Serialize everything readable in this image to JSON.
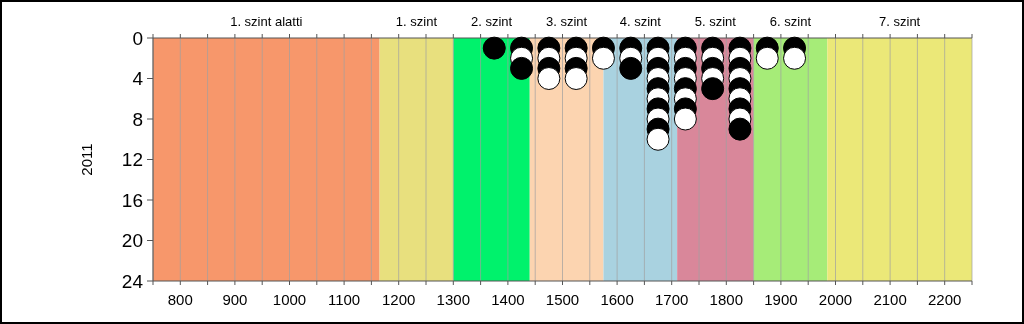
{
  "chart_data": {
    "type": "scatter",
    "ylabel": "2011",
    "xlim": [
      750,
      2250
    ],
    "ylim": [
      24,
      0
    ],
    "xticks": [
      {
        "value": 750,
        "label": null
      },
      800,
      {
        "value": 850,
        "label": null
      },
      900,
      {
        "value": 950,
        "label": null
      },
      1000,
      {
        "value": 1050,
        "label": null
      },
      1100,
      {
        "value": 1150,
        "label": null
      },
      1200,
      {
        "value": 1250,
        "label": null
      },
      1300,
      {
        "value": 1350,
        "label": null
      },
      1400,
      {
        "value": 1450,
        "label": null
      },
      1500,
      {
        "value": 1550,
        "label": null
      },
      1600,
      {
        "value": 1650,
        "label": null
      },
      1700,
      {
        "value": 1750,
        "label": null
      },
      1800,
      {
        "value": 1850,
        "label": null
      },
      1900,
      {
        "value": 1950,
        "label": null
      },
      2000,
      {
        "value": 2050,
        "label": null
      },
      2100,
      {
        "value": 2150,
        "label": null
      },
      2200,
      {
        "value": 2250,
        "label": null
      }
    ],
    "yticks": [
      0,
      4,
      8,
      12,
      16,
      20,
      24
    ],
    "grid": "x",
    "marker": "circle",
    "bands": [
      {
        "axis": "x",
        "from": 750,
        "to": 1165,
        "label": "1. szint alatti",
        "color": "#f7976b"
      },
      {
        "axis": "x",
        "from": 1165,
        "to": 1300,
        "label": "1. szint",
        "color": "#e8e07e"
      },
      {
        "axis": "x",
        "from": 1300,
        "to": 1440,
        "label": "2. szint",
        "color": "#00f26c"
      },
      {
        "axis": "x",
        "from": 1440,
        "to": 1575,
        "label": "3. szint",
        "color": "#fcd4b0"
      },
      {
        "axis": "x",
        "from": 1575,
        "to": 1710,
        "label": "4. szint",
        "color": "#a9d2e0"
      },
      {
        "axis": "x",
        "from": 1710,
        "to": 1850,
        "label": "5. szint",
        "color": "#d9879a"
      },
      {
        "axis": "x",
        "from": 1850,
        "to": 1985,
        "label": "6. szint",
        "color": "#a6ec78"
      },
      {
        "axis": "x",
        "from": 1985,
        "to": 2250,
        "label": "7. szint",
        "color": "#ebe878"
      }
    ],
    "series": [
      {
        "color": "#000000",
        "x": [
          1375,
          1425,
          1425,
          1475,
          1475,
          1525,
          1525,
          1575,
          1625,
          1625,
          1675,
          1675,
          1675,
          1675,
          1675,
          1725,
          1725,
          1725,
          1725,
          1775,
          1775,
          1775,
          1825,
          1825,
          1825,
          1825,
          1825,
          1875,
          1925
        ],
        "values": [
          1,
          1,
          3,
          1,
          3,
          1,
          3,
          1,
          1,
          3,
          1,
          3,
          5,
          7,
          9,
          1,
          3,
          5,
          7,
          1,
          3,
          5,
          1,
          3,
          5,
          7,
          9,
          1,
          1
        ]
      },
      {
        "color": "#ffffff",
        "x": [
          1425,
          1475,
          1475,
          1525,
          1525,
          1575,
          1625,
          1675,
          1675,
          1675,
          1675,
          1675,
          1725,
          1725,
          1725,
          1725,
          1775,
          1775,
          1825,
          1825,
          1825,
          1825,
          1875,
          1925
        ],
        "values": [
          2,
          2,
          4,
          2,
          4,
          2,
          2,
          2,
          4,
          6,
          8,
          10,
          2,
          4,
          6,
          8,
          2,
          4,
          2,
          4,
          6,
          8,
          2,
          2
        ]
      }
    ]
  }
}
